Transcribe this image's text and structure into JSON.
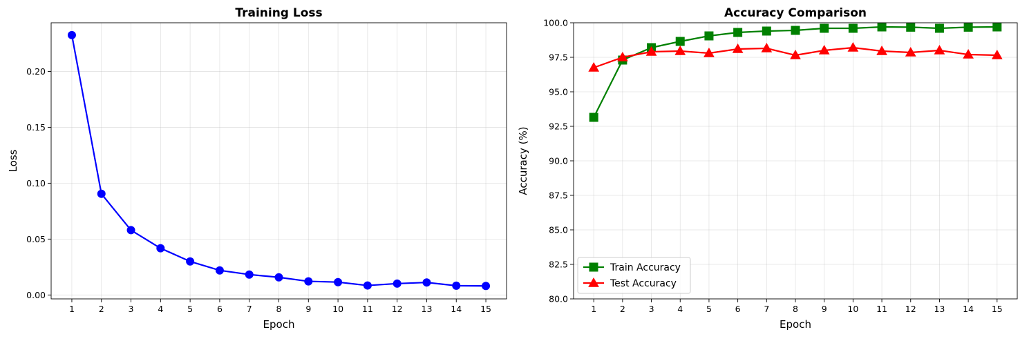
{
  "chart_data": [
    {
      "type": "line",
      "title": "Training Loss",
      "xlabel": "Epoch",
      "ylabel": "Loss",
      "x": [
        1,
        2,
        3,
        4,
        5,
        6,
        7,
        8,
        9,
        10,
        11,
        12,
        13,
        14,
        15
      ],
      "xticks": [
        "1",
        "2",
        "3",
        "4",
        "5",
        "6",
        "7",
        "8",
        "9",
        "10",
        "11",
        "12",
        "13",
        "14",
        "15"
      ],
      "xlim": [
        0.3,
        15.7
      ],
      "ylim": [
        -0.0035,
        0.2435
      ],
      "yticks": [
        "0.00",
        "0.05",
        "0.10",
        "0.15",
        "0.20"
      ],
      "ytick_values": [
        0,
        0.05,
        0.1,
        0.15,
        0.2
      ],
      "grid": true,
      "legend": null,
      "series": [
        {
          "values": [
            0.2325,
            0.0905,
            0.058,
            0.0418,
            0.03,
            0.022,
            0.0183,
            0.0158,
            0.0122,
            0.0115,
            0.0085,
            0.0102,
            0.0112,
            0.0083,
            0.0081
          ],
          "color": "#0000ff",
          "marker": "circle"
        }
      ]
    },
    {
      "type": "line",
      "title": "Accuracy Comparison",
      "xlabel": "Epoch",
      "ylabel": "Accuracy (%)",
      "x": [
        1,
        2,
        3,
        4,
        5,
        6,
        7,
        8,
        9,
        10,
        11,
        12,
        13,
        14,
        15
      ],
      "xticks": [
        "1",
        "2",
        "3",
        "4",
        "5",
        "6",
        "7",
        "8",
        "9",
        "10",
        "11",
        "12",
        "13",
        "14",
        "15"
      ],
      "xlim": [
        0.3,
        15.7
      ],
      "ylim": [
        80,
        100
      ],
      "yticks": [
        "80.0",
        "82.5",
        "85.0",
        "87.5",
        "90.0",
        "92.5",
        "95.0",
        "97.5",
        "100.0"
      ],
      "ytick_values": [
        80,
        82.5,
        85,
        87.5,
        90,
        92.5,
        95,
        97.5,
        100
      ],
      "grid": true,
      "legend": "lower-left",
      "series": [
        {
          "name": "Train Accuracy",
          "values": [
            93.15,
            97.3,
            98.2,
            98.65,
            99.05,
            99.3,
            99.4,
            99.45,
            99.6,
            99.6,
            99.7,
            99.68,
            99.6,
            99.68,
            99.7
          ],
          "color": "#008000",
          "marker": "square"
        },
        {
          "name": "Test Accuracy",
          "values": [
            96.75,
            97.5,
            97.9,
            97.95,
            97.8,
            98.1,
            98.15,
            97.65,
            98.0,
            98.2,
            97.95,
            97.85,
            98.0,
            97.7,
            97.65
          ],
          "color": "#ff0000",
          "marker": "triangle"
        }
      ]
    }
  ]
}
